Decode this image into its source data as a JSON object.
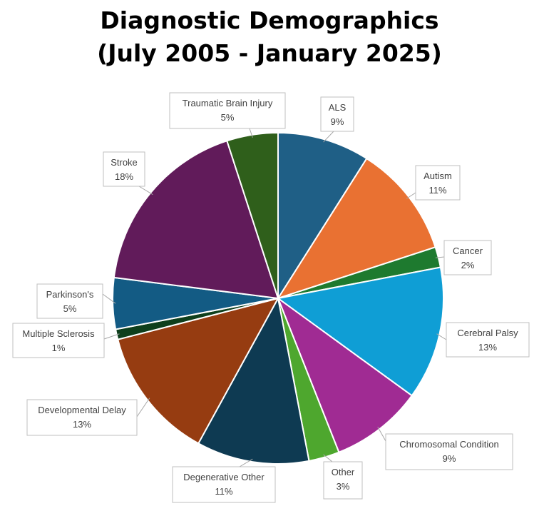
{
  "title_line1": "Diagnostic Demographics",
  "title_line2": "(July 2005 - January 2025)",
  "chart_data": {
    "type": "pie",
    "title": "Diagnostic Demographics (July 2005 - January 2025)",
    "slices": [
      {
        "name": "ALS",
        "value": 9,
        "label": "9%",
        "color": "#1f5f86"
      },
      {
        "name": "Autism",
        "value": 11,
        "label": "11%",
        "color": "#e97132"
      },
      {
        "name": "Cancer",
        "value": 2,
        "label": "2%",
        "color": "#1e7a2f"
      },
      {
        "name": "Cerebral Palsy",
        "value": 13,
        "label": "13%",
        "color": "#0f9ed5"
      },
      {
        "name": "Chromosomal Condition",
        "value": 9,
        "label": "9%",
        "color": "#a02b93"
      },
      {
        "name": "Other",
        "value": 3,
        "label": "3%",
        "color": "#4ea72e"
      },
      {
        "name": "Degenerative Other",
        "value": 11,
        "label": "11%",
        "color": "#0e3a52"
      },
      {
        "name": "Developmental Delay",
        "value": 13,
        "label": "13%",
        "color": "#963c11"
      },
      {
        "name": "Multiple Sclerosis",
        "value": 1,
        "label": "1%",
        "color": "#0e3f1c"
      },
      {
        "name": "Parkinson's",
        "value": 5,
        "label": "5%",
        "color": "#135b84"
      },
      {
        "name": "Stroke",
        "value": 18,
        "label": "18%",
        "color": "#611b5a"
      },
      {
        "name": "Traumatic Brain Injury",
        "value": 5,
        "label": "5%",
        "color": "#2f5f1b"
      }
    ],
    "legend": "data labels with leader lines"
  }
}
